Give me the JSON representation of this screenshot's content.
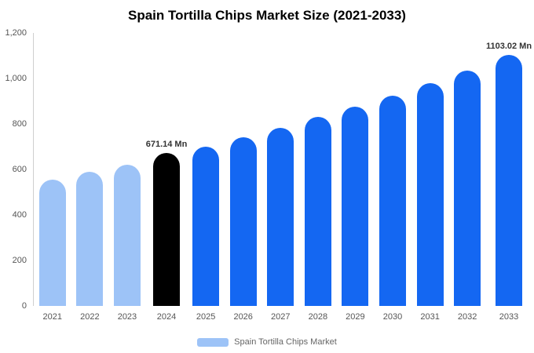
{
  "title": "Spain Tortilla Chips Market Size (2021-2033)",
  "legend": {
    "label": "Spain Tortilla Chips Market",
    "swatch_color": "#9dc3f7"
  },
  "colors": {
    "historical": "#9dc3f7",
    "current": "#000000",
    "forecast": "#1467f2",
    "annotation_text": "#333333",
    "axis_text": "#555555",
    "axis_line": "#cfcfcf"
  },
  "chart_data": {
    "type": "bar",
    "title": "Spain Tortilla Chips Market Size (2021-2033)",
    "categories": [
      "2021",
      "2022",
      "2023",
      "2024",
      "2025",
      "2026",
      "2027",
      "2028",
      "2029",
      "2030",
      "2031",
      "2032",
      "2033"
    ],
    "values": [
      555,
      590,
      622,
      671.14,
      700,
      742,
      782,
      830,
      875,
      925,
      978,
      1035,
      1103.02
    ],
    "bar_colors": [
      "#9dc3f7",
      "#9dc3f7",
      "#9dc3f7",
      "#000000",
      "#1467f2",
      "#1467f2",
      "#1467f2",
      "#1467f2",
      "#1467f2",
      "#1467f2",
      "#1467f2",
      "#1467f2",
      "#1467f2"
    ],
    "annotations": [
      {
        "category": "2024",
        "text": "671.14 Mn"
      },
      {
        "category": "2033",
        "text": "1103.02 Mn"
      }
    ],
    "xlabel": "",
    "ylabel": "",
    "ylim": [
      0,
      1200
    ],
    "yticks": [
      {
        "value": 0,
        "label": "0"
      },
      {
        "value": 200,
        "label": "200"
      },
      {
        "value": 400,
        "label": "400"
      },
      {
        "value": 600,
        "label": "600"
      },
      {
        "value": 800,
        "label": "800"
      },
      {
        "value": 1000,
        "label": "1,000"
      },
      {
        "value": 1200,
        "label": "1,200"
      }
    ],
    "grid": false,
    "legend_position": "bottom",
    "unit": "Mn"
  }
}
